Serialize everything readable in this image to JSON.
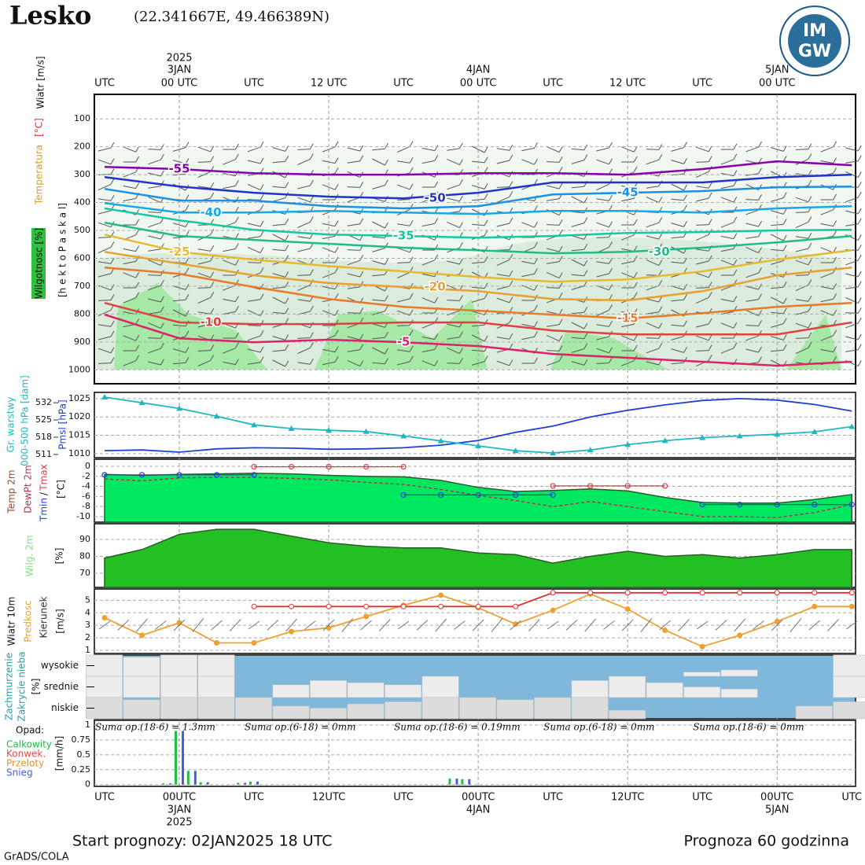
{
  "header": {
    "station": "Lesko",
    "coords": "(22.341667E, 49.466389N)",
    "logo": [
      "IM",
      "GW"
    ]
  },
  "x_axis": {
    "xlim": [
      -0.82,
      60.3
    ],
    "top_ticks": [
      {
        "value": 0,
        "label": "UTC"
      },
      {
        "value": 6,
        "label": "00 UTC"
      },
      {
        "value": 12,
        "label": "UTC"
      },
      {
        "value": 18,
        "label": "12 UTC"
      },
      {
        "value": 24,
        "label": "UTC"
      },
      {
        "value": 30,
        "label": "00 UTC"
      },
      {
        "value": 36,
        "label": "UTC"
      },
      {
        "value": 42,
        "label": "12 UTC"
      },
      {
        "value": 48,
        "label": "UTC"
      },
      {
        "value": 54,
        "label": "00 UTC"
      }
    ],
    "bottom_ticks": [
      {
        "value": 0,
        "label": "UTC"
      },
      {
        "value": 6,
        "label": "00UTC"
      },
      {
        "value": 12,
        "label": "UTC"
      },
      {
        "value": 18,
        "label": "12UTC"
      },
      {
        "value": 24,
        "label": "UTC"
      },
      {
        "value": 30,
        "label": "00UTC"
      },
      {
        "value": 36,
        "label": "UTC"
      },
      {
        "value": 42,
        "label": "12UTC"
      },
      {
        "value": 48,
        "label": "UTC"
      },
      {
        "value": 54,
        "label": "00UTC"
      },
      {
        "value": 60,
        "label": "UTC"
      }
    ],
    "dates": [
      {
        "value": 6,
        "label": "3JAN"
      },
      {
        "value": 30,
        "label": "4JAN"
      },
      {
        "value": 54,
        "label": "5JAN"
      }
    ],
    "year": {
      "value": 6,
      "label": "2025"
    }
  },
  "footer": {
    "start": "Start prognozy: 02JAN2025 18 UTC",
    "length": "Prognoza 60 godzinna",
    "credit": "GrADS/COLA"
  },
  "chart_data": [
    {
      "type": "contour",
      "labels": [
        "Wiatr [m/s]",
        "[°C]",
        "Temperatura",
        "Wilgotnosc [%]",
        "[h e k t o P a s k a l]"
      ],
      "x": [
        0,
        6,
        12,
        18,
        24,
        30,
        36,
        42,
        48,
        54,
        60
      ],
      "ylim": [
        1050,
        12
      ],
      "yticks": [
        100,
        200,
        300,
        400,
        500,
        600,
        700,
        800,
        900,
        1000
      ],
      "series": [
        {
          "name": "-55",
          "color": "#8800aa",
          "values": [
            272,
            280,
            295,
            300,
            300,
            295,
            295,
            300,
            280,
            252,
            266
          ]
        },
        {
          "name": "-50",
          "color": "#2233cc",
          "values": [
            309,
            343,
            365,
            379,
            385,
            365,
            328,
            328,
            328,
            309,
            300
          ]
        },
        {
          "name": "-45",
          "color": "#1e90e0",
          "values": [
            351,
            393,
            393,
            413,
            421,
            413,
            371,
            365,
            359,
            345,
            343
          ]
        },
        {
          "name": "-40",
          "color": "#18a8e8",
          "values": [
            402,
            436,
            436,
            430,
            436,
            441,
            430,
            430,
            436,
            421,
            413
          ]
        },
        {
          "name": "-35",
          "color": "#14c8a0",
          "values": [
            421,
            464,
            498,
            515,
            520,
            526,
            520,
            509,
            506,
            500,
            498
          ]
        },
        {
          "name": "-30",
          "color": "#22bb88",
          "values": [
            472,
            520,
            534,
            548,
            562,
            571,
            582,
            577,
            562,
            543,
            520
          ]
        },
        {
          "name": "-25",
          "color": "#e8b830",
          "values": [
            515,
            577,
            605,
            628,
            647,
            667,
            684,
            676,
            647,
            605,
            571
          ]
        },
        {
          "name": "-20",
          "color": "#e8a030",
          "values": [
            577,
            619,
            661,
            689,
            703,
            718,
            746,
            751,
            718,
            661,
            633
          ]
        },
        {
          "name": "-15",
          "color": "#e87a2a",
          "values": [
            633,
            656,
            703,
            746,
            774,
            788,
            802,
            816,
            797,
            774,
            760
          ]
        },
        {
          "name": "-10",
          "color": "#e04040",
          "values": [
            760,
            830,
            836,
            836,
            830,
            830,
            859,
            873,
            873,
            873,
            830
          ]
        },
        {
          "name": "-5",
          "color": "#e0206a",
          "values": [
            802,
            887,
            901,
            892,
            901,
            915,
            943,
            957,
            971,
            985,
            971
          ]
        }
      ]
    },
    {
      "type": "line",
      "y2label": "000-500 hPa [dam]",
      "x": [
        0,
        3,
        6,
        9,
        12,
        15,
        18,
        21,
        24,
        27,
        30,
        33,
        36,
        39,
        42,
        45,
        48,
        51,
        54,
        57,
        60
      ],
      "ylim": [
        1008.9,
        1026.7
      ],
      "yticks": [
        1010,
        1015,
        1020,
        1025
      ],
      "y2lim": [
        509.7,
        536.2
      ],
      "y2ticks": [
        511,
        518,
        525,
        532
      ],
      "series": [
        {
          "name": "Pmsl [hPa]",
          "color": "#2040d0",
          "values": [
            1010.8,
            1011,
            1010.4,
            1011.3,
            1011.6,
            1011.5,
            1011.2,
            1011.3,
            1011.6,
            1012.3,
            1013.6,
            1015.8,
            1017.5,
            1020,
            1021.8,
            1023.3,
            1024.5,
            1025,
            1024.6,
            1023.4,
            1021.6
          ]
        },
        {
          "name": "Gr. warstwy",
          "color": "#20b8c0",
          "axis": "y2",
          "marker": "triangle",
          "values": [
            534.3,
            532,
            529.7,
            526.5,
            523,
            521.5,
            520.8,
            520.3,
            518.5,
            516.5,
            514.5,
            512.5,
            511.6,
            512.8,
            515,
            516.6,
            517.8,
            518.5,
            519.2,
            520.2,
            522.3
          ]
        }
      ]
    },
    {
      "type": "area",
      "ylabel": "[°C]",
      "legend_separator": "/",
      "x": [
        0,
        3,
        6,
        9,
        12,
        15,
        18,
        21,
        24,
        27,
        30,
        33,
        36,
        39,
        42,
        45,
        48,
        51,
        54,
        57,
        60
      ],
      "ylim": [
        -11.1,
        1.4
      ],
      "yticks": [
        0,
        -2,
        -4,
        -6,
        -8,
        -10
      ],
      "series": [
        {
          "name": "Temp 2m",
          "color": "#00e860",
          "kind": "area",
          "values": [
            -1.6,
            -1.8,
            -1.6,
            -1.5,
            -1.4,
            -1.5,
            -1.8,
            -2,
            -2.1,
            -2.8,
            -4.2,
            -5,
            -4.8,
            -4.5,
            -4.9,
            -6.2,
            -7.2,
            -7.3,
            -7.3,
            -6.6,
            -5.6
          ]
        },
        {
          "name": "DewPt 2m",
          "color": "#b03848",
          "kind": "dash",
          "values": [
            -2.5,
            -2.9,
            -2.3,
            -2.2,
            -2.2,
            -2.4,
            -2.7,
            -3.2,
            -3.6,
            -4.6,
            -5.8,
            -6.8,
            -8,
            -7,
            -8,
            -9,
            -10,
            -10,
            -10.2,
            -9.2,
            -7.6
          ]
        },
        {
          "name": "Tmin",
          "color": "#2040e0",
          "kind": "dots",
          "values": [
            -1.7,
            -1.7,
            -1.7,
            -1.7,
            -1.7,
            null,
            null,
            null,
            -5.7,
            -5.7,
            -5.7,
            -5.7,
            -5.7,
            null,
            null,
            null,
            -7.6,
            -7.6,
            -7.6,
            -7.6,
            -7.6
          ]
        },
        {
          "name": "Tmax",
          "color": "#e04040",
          "kind": "dots",
          "values": [
            null,
            null,
            null,
            null,
            -0.1,
            -0.1,
            -0.1,
            -0.1,
            -0.1,
            null,
            null,
            null,
            -3.9,
            -3.9,
            -3.9,
            -3.9,
            null,
            null,
            null,
            null,
            null
          ]
        }
      ]
    },
    {
      "type": "area",
      "ylabel": "[%]",
      "x": [
        0,
        3,
        6,
        9,
        12,
        15,
        18,
        21,
        24,
        27,
        30,
        33,
        36,
        39,
        42,
        45,
        48,
        51,
        54,
        57,
        60
      ],
      "ylim": [
        61.6,
        99.3
      ],
      "yticks": [
        70,
        80,
        90
      ],
      "series": [
        {
          "name": "Wilg. 2m",
          "color": "#22c022",
          "kind": "area",
          "values": [
            79,
            84,
            93,
            96,
            96,
            92,
            88,
            86,
            85,
            85,
            82,
            81,
            76,
            80,
            83,
            80,
            81,
            79,
            81,
            84,
            84
          ]
        }
      ]
    },
    {
      "type": "line",
      "title": "Wiatr 10m",
      "direction_label": "Kierunek",
      "ylabel": "[m/s]",
      "x": [
        0,
        3,
        6,
        9,
        12,
        15,
        18,
        21,
        24,
        27,
        30,
        33,
        36,
        39,
        42,
        45,
        48,
        51,
        54,
        57,
        60
      ],
      "ylim": [
        0.75,
        5.9
      ],
      "yticks": [
        1,
        2,
        3,
        4,
        5
      ],
      "series": [
        {
          "name": "Predkosc",
          "color": "#f0a030",
          "marker": "circle",
          "values": [
            3.6,
            2.2,
            3.2,
            1.6,
            1.6,
            2.5,
            2.8,
            3.7,
            4.6,
            5.4,
            4.4,
            3.1,
            4.2,
            5.5,
            4.3,
            2.6,
            1.3,
            2.2,
            3.3,
            4.5,
            4.5
          ]
        },
        {
          "color": "#e03030",
          "marker": "circle",
          "values": [
            null,
            null,
            null,
            null,
            4.5,
            4.5,
            4.5,
            4.5,
            4.5,
            4.5,
            4.5,
            4.5,
            5.6,
            5.6,
            5.6,
            5.6,
            5.6,
            5.6,
            5.6,
            5.6,
            5.6
          ]
        }
      ]
    },
    {
      "type": "cloud",
      "labels": [
        "Zachmurzenie",
        "Zakrycie nieba"
      ],
      "ylabel": "[%]",
      "background": "#80b8dc",
      "x": [
        0,
        3,
        6,
        9,
        12,
        15,
        18,
        21,
        24,
        27,
        30,
        33,
        36,
        39,
        42,
        45,
        48,
        51,
        54,
        57,
        60
      ],
      "series": [
        {
          "name": "wysokie",
          "color": "#ececec",
          "values": [
            100,
            90,
            100,
            100,
            0,
            0,
            0,
            0,
            0,
            0,
            0,
            0,
            0,
            0,
            0,
            0,
            20,
            30,
            0,
            0,
            100
          ]
        },
        {
          "name": "srednie",
          "color": "#ececec",
          "values": [
            100,
            100,
            100,
            100,
            0,
            60,
            80,
            70,
            60,
            100,
            0,
            0,
            0,
            80,
            100,
            70,
            50,
            40,
            0,
            0,
            100
          ]
        },
        {
          "name": "niskie",
          "color": "#dcdcdc",
          "values": [
            100,
            90,
            100,
            100,
            100,
            60,
            50,
            70,
            80,
            100,
            100,
            90,
            100,
            100,
            40,
            0,
            0,
            0,
            0,
            60,
            80
          ]
        }
      ]
    },
    {
      "type": "bar",
      "title": "Opad:",
      "ylabel": "[mm/h]",
      "x": [
        5,
        6,
        7,
        8,
        11,
        12,
        28,
        29
      ],
      "ylim": [
        -0.03,
        1.08
      ],
      "yticks": [
        0,
        0.25,
        0.5,
        0.75,
        1
      ],
      "annotations": [
        "Suma op.(18-6) = 1.3mm",
        "Suma op.(6-18) = 0mm",
        "Suma op.(18-6) = 0.19mm",
        "Suma op.(6-18) = 0mm",
        "Suma op.(18-6) = 0mm"
      ],
      "series": [
        {
          "name": "Calkowity",
          "color": "#20c040",
          "values": [
            0.02,
            0.9,
            0.23,
            0.04,
            0.03,
            0.05,
            0.1,
            0.09
          ]
        },
        {
          "name": "Konwek.",
          "color": "#e05050",
          "values": [
            0,
            0,
            0,
            0,
            0,
            0,
            0,
            0
          ]
        },
        {
          "name": "Przeloty",
          "color": "#e09030",
          "values": [
            0,
            0,
            0,
            0,
            0,
            0,
            0,
            0
          ]
        },
        {
          "name": "Snieg",
          "color": "#4060e0",
          "values": [
            0.02,
            0.9,
            0.23,
            0.04,
            0.03,
            0.05,
            0.1,
            0.09
          ]
        }
      ]
    }
  ]
}
